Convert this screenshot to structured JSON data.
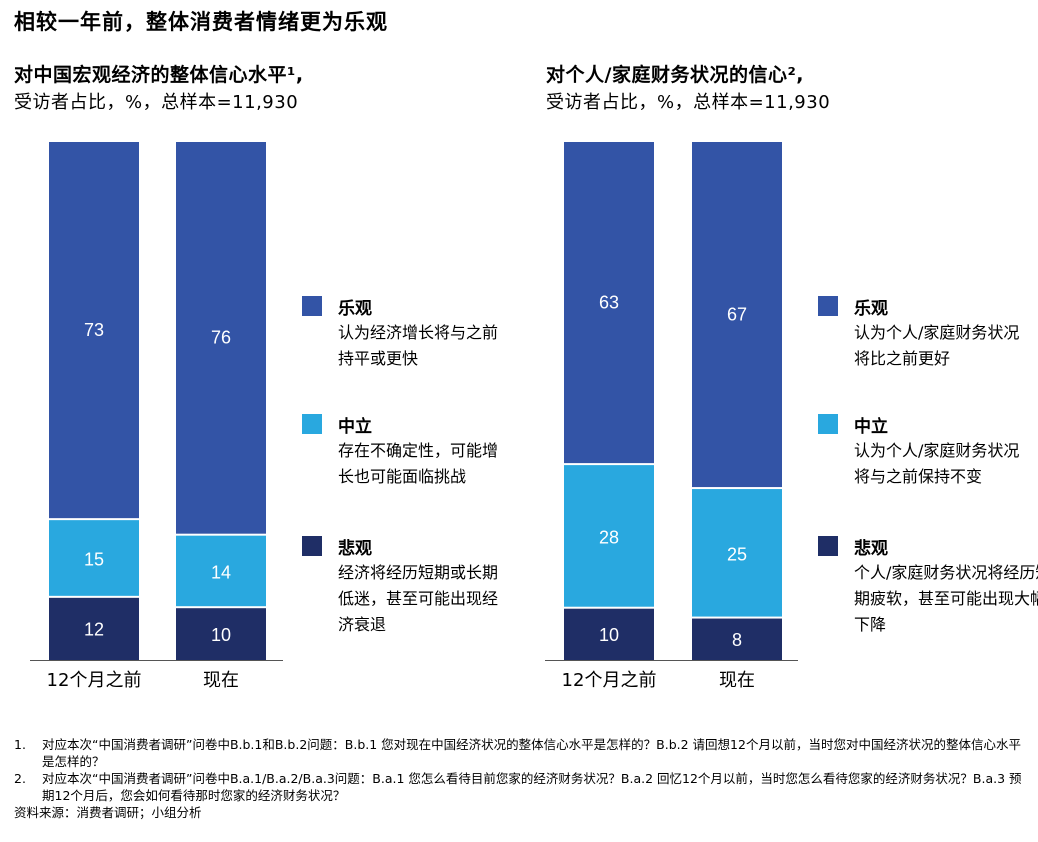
{
  "page_title": "相较一年前，整体消费者情绪更为乐观",
  "colors": {
    "optimistic": "#3354a6",
    "neutral": "#29a8df",
    "pessimistic": "#1f2e66"
  },
  "chart_data": [
    {
      "type": "bar",
      "stacked": true,
      "title": "对中国宏观经济的整体信心水平¹,",
      "subtitle": "受访者占比，%，总样本=11,930",
      "categories": [
        "12个月之前",
        "现在"
      ],
      "series": [
        {
          "name": "悲观",
          "values": [
            12,
            10
          ]
        },
        {
          "name": "中立",
          "values": [
            15,
            14
          ]
        },
        {
          "name": "乐观",
          "values": [
            73,
            76
          ]
        }
      ],
      "ylim": [
        0,
        100
      ],
      "legend": [
        {
          "name": "乐观",
          "desc": "认为经济增长将与之前持平或更快"
        },
        {
          "name": "中立",
          "desc": "存在不确定性，可能增长也可能面临挑战"
        },
        {
          "name": "悲观",
          "desc": "经济将经历短期或长期低迷，甚至可能出现经济衰退"
        }
      ]
    },
    {
      "type": "bar",
      "stacked": true,
      "title": "对个人/家庭财务状况的信心²,",
      "subtitle": "受访者占比，%，总样本=11,930",
      "categories": [
        "12个月之前",
        "现在"
      ],
      "series": [
        {
          "name": "悲观",
          "values": [
            10,
            8
          ]
        },
        {
          "name": "中立",
          "values": [
            28,
            25
          ]
        },
        {
          "name": "乐观",
          "values": [
            63,
            67
          ]
        }
      ],
      "ylim": [
        0,
        100
      ],
      "legend": [
        {
          "name": "乐观",
          "desc": "认为个人/家庭财务状况将比之前更好"
        },
        {
          "name": "中立",
          "desc": "认为个人/家庭财务状况将与之前保持不变"
        },
        {
          "name": "悲观",
          "desc": "个人/家庭财务状况将经历短期疲软，甚至可能出现大幅下降"
        }
      ]
    }
  ],
  "footnotes": [
    {
      "num": "1.",
      "text": "对应本次“中国消费者调研”问卷中B.b.1和B.b.2问题：B.b.1 您对现在中国经济状况的整体信心水平是怎样的？B.b.2 请回想12个月以前，当时您对中国经济状况的整体信心水平是怎样的？"
    },
    {
      "num": "2.",
      "text": "对应本次“中国消费者调研”问卷中B.a.1/B.a.2/B.a.3问题：B.a.1 您怎么看待目前您家的经济财务状况？B.a.2 回忆12个月以前，当时您怎么看待您家的经济财务状况？B.a.3 预期12个月后，您会如何看待那时您家的经济财务状况？"
    }
  ],
  "source": "资料来源：消费者调研；小组分析"
}
